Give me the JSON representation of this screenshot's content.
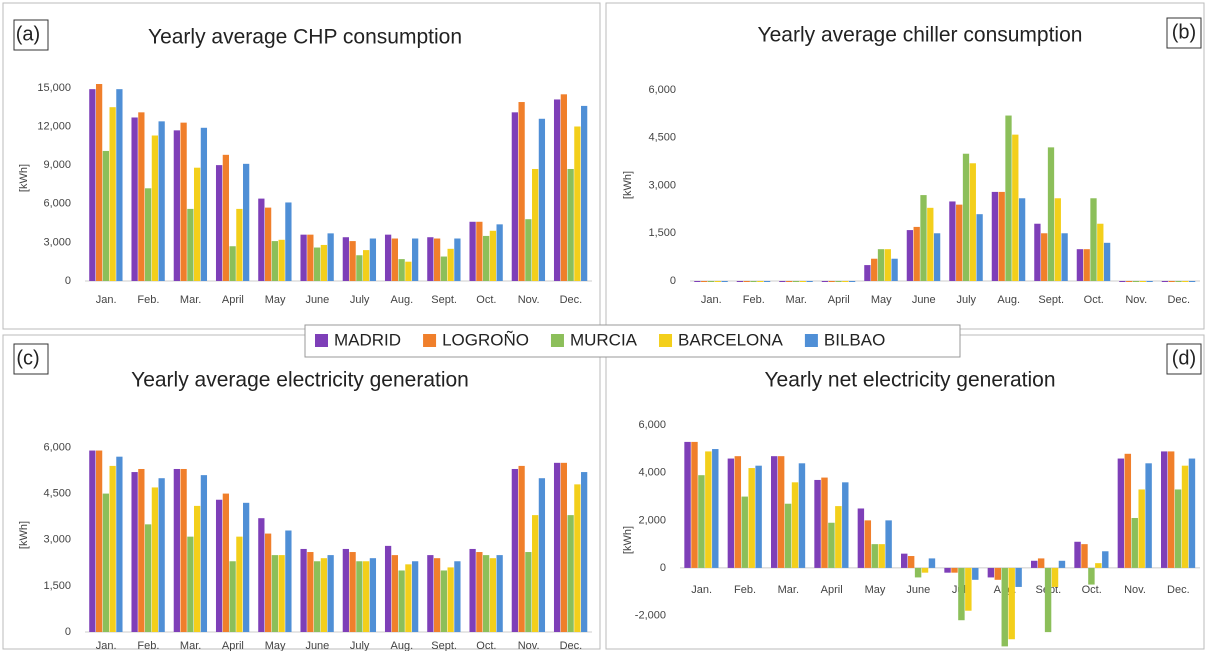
{
  "chart_data": [
    {
      "type": "bar",
      "label": "(a)",
      "title": "Yearly average CHP consumption",
      "ylabel": "[kWh]",
      "categories": [
        "Jan.",
        "Feb.",
        "Mar.",
        "April",
        "May",
        "June",
        "July",
        "Aug.",
        "Sept.",
        "Oct.",
        "Nov.",
        "Dec."
      ],
      "ylim": [
        0,
        16000
      ],
      "yticks": [
        0,
        {
          "value": 3000,
          "label": "3,000"
        },
        {
          "value": 6000,
          "label": "6,000"
        },
        {
          "value": 9000,
          "label": "9,000"
        },
        {
          "value": 12000,
          "label": "12,000"
        },
        {
          "value": 15000,
          "label": "15,000"
        }
      ],
      "series": [
        {
          "name": "MADRID",
          "color": "#7e3fb8",
          "values": [
            14900,
            12700,
            11700,
            9000,
            6400,
            3600,
            3400,
            3600,
            3400,
            4600,
            13100,
            14100
          ]
        },
        {
          "name": "LOGROÑO",
          "color": "#f07f2b",
          "values": [
            15300,
            13100,
            12300,
            9800,
            5700,
            3600,
            3100,
            3300,
            3300,
            4600,
            13900,
            14500
          ]
        },
        {
          "name": "MURCIA",
          "color": "#8cbf5a",
          "values": [
            10100,
            7200,
            5600,
            2700,
            3100,
            2600,
            2000,
            1700,
            1900,
            3500,
            4800,
            8700
          ]
        },
        {
          "name": "BARCELONA",
          "color": "#f3cf1b",
          "values": [
            13500,
            11300,
            8800,
            5600,
            3200,
            2800,
            2400,
            1500,
            2500,
            3900,
            8700,
            12000
          ]
        },
        {
          "name": "BILBAO",
          "color": "#4f8fd6",
          "values": [
            14900,
            12400,
            11900,
            9100,
            6100,
            3700,
            3300,
            3300,
            3300,
            4400,
            12600,
            13600
          ]
        }
      ]
    },
    {
      "type": "bar",
      "label": "(b)",
      "title": "Yearly average chiller consumption",
      "ylabel": "[kWh]",
      "categories": [
        "Jan.",
        "Feb.",
        "Mar.",
        "April",
        "May",
        "June",
        "July",
        "Aug.",
        "Sept.",
        "Oct.",
        "Nov.",
        "Dec."
      ],
      "ylim": [
        0,
        6600
      ],
      "yticks": [
        0,
        {
          "value": 1500,
          "label": "1,500"
        },
        {
          "value": 3000,
          "label": "3,000"
        },
        {
          "value": 4500,
          "label": "4,500"
        },
        {
          "value": 6000,
          "label": "6,000"
        }
      ],
      "series": [
        {
          "name": "MADRID",
          "color": "#7e3fb8",
          "values": [
            0,
            0,
            0,
            0,
            500,
            1600,
            2500,
            2800,
            1800,
            1000,
            0,
            0
          ]
        },
        {
          "name": "LOGROÑO",
          "color": "#f07f2b",
          "values": [
            0,
            0,
            0,
            0,
            700,
            1700,
            2400,
            2800,
            1500,
            1000,
            0,
            0
          ]
        },
        {
          "name": "MURCIA",
          "color": "#8cbf5a",
          "values": [
            0,
            0,
            0,
            0,
            1000,
            2700,
            4000,
            5200,
            4200,
            2600,
            0,
            0
          ]
        },
        {
          "name": "BARCELONA",
          "color": "#f3cf1b",
          "values": [
            0,
            0,
            0,
            0,
            1000,
            2300,
            3700,
            4600,
            2600,
            1800,
            0,
            0
          ]
        },
        {
          "name": "BILBAO",
          "color": "#4f8fd6",
          "values": [
            0,
            0,
            0,
            0,
            700,
            1500,
            2100,
            2600,
            1500,
            1200,
            0,
            0
          ]
        }
      ]
    },
    {
      "type": "bar",
      "label": "(c)",
      "title": "Yearly average electricity generation",
      "ylabel": "[kWh]",
      "categories": [
        "Jan.",
        "Feb.",
        "Mar.",
        "April",
        "May",
        "June",
        "July",
        "Aug.",
        "Sept.",
        "Oct.",
        "Nov.",
        "Dec."
      ],
      "ylim": [
        0,
        6600
      ],
      "yticks": [
        0,
        {
          "value": 1500,
          "label": "1,500"
        },
        {
          "value": 3000,
          "label": "3,000"
        },
        {
          "value": 4500,
          "label": "4,500"
        },
        {
          "value": 6000,
          "label": "6,000"
        }
      ],
      "series": [
        {
          "name": "MADRID",
          "color": "#7e3fb8",
          "values": [
            5900,
            5200,
            5300,
            4300,
            3700,
            2700,
            2700,
            2800,
            2500,
            2700,
            5300,
            5500
          ]
        },
        {
          "name": "LOGROÑO",
          "color": "#f07f2b",
          "values": [
            5900,
            5300,
            5300,
            4500,
            3200,
            2600,
            2600,
            2500,
            2400,
            2600,
            5400,
            5500
          ]
        },
        {
          "name": "MURCIA",
          "color": "#8cbf5a",
          "values": [
            4500,
            3500,
            3100,
            2300,
            2500,
            2300,
            2300,
            2000,
            2000,
            2500,
            2600,
            3800
          ]
        },
        {
          "name": "BARCELONA",
          "color": "#f3cf1b",
          "values": [
            5400,
            4700,
            4100,
            3100,
            2500,
            2400,
            2300,
            2200,
            2100,
            2400,
            3800,
            4800
          ]
        },
        {
          "name": "BILBAO",
          "color": "#4f8fd6",
          "values": [
            5700,
            5000,
            5100,
            4200,
            3300,
            2500,
            2400,
            2300,
            2300,
            2500,
            5000,
            5200
          ]
        }
      ]
    },
    {
      "type": "bar",
      "label": "(d)",
      "title": "Yearly net electricity generation",
      "ylabel": "[kWh]",
      "categories": [
        "Jan.",
        "Feb.",
        "Mar.",
        "April",
        "May",
        "June",
        "July",
        "Aug.",
        "Sept.",
        "Oct.",
        "Nov.",
        "Dec."
      ],
      "ylim": [
        -3200,
        6600
      ],
      "yticks": [
        {
          "value": -2000,
          "label": "-2,000"
        },
        0,
        {
          "value": 2000,
          "label": "2,000"
        },
        {
          "value": 4000,
          "label": "4,000"
        },
        {
          "value": 6000,
          "label": "6,000"
        }
      ],
      "series": [
        {
          "name": "MADRID",
          "color": "#7e3fb8",
          "values": [
            5300,
            4600,
            4700,
            3700,
            2500,
            600,
            -200,
            -400,
            300,
            1100,
            4600,
            4900
          ]
        },
        {
          "name": "LOGROÑO",
          "color": "#f07f2b",
          "values": [
            5300,
            4700,
            4700,
            3800,
            2000,
            500,
            -200,
            -500,
            400,
            1000,
            4800,
            4900
          ]
        },
        {
          "name": "MURCIA",
          "color": "#8cbf5a",
          "values": [
            3900,
            3000,
            2700,
            1900,
            1000,
            -400,
            -2200,
            -3300,
            -2700,
            -700,
            2100,
            3300
          ]
        },
        {
          "name": "BARCELONA",
          "color": "#f3cf1b",
          "values": [
            4900,
            4200,
            3600,
            2600,
            1000,
            -200,
            -1800,
            -3000,
            -800,
            200,
            3300,
            4300
          ]
        },
        {
          "name": "BILBAO",
          "color": "#4f8fd6",
          "values": [
            5000,
            4300,
            4400,
            3600,
            2000,
            400,
            -500,
            -800,
            300,
            700,
            4400,
            4600
          ]
        }
      ]
    }
  ]
}
